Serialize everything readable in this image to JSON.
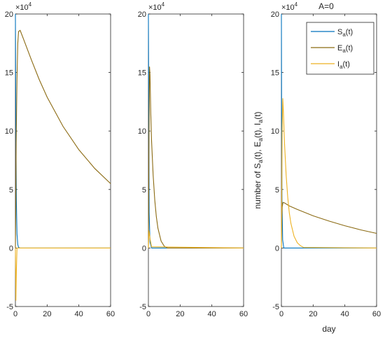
{
  "chart_data": [
    {
      "type": "line",
      "panel": "left",
      "x_unit_exponent_label": "×10",
      "y_exponent": "4",
      "xlim": [
        0,
        60
      ],
      "ylim": [
        -5,
        20
      ],
      "x_ticks": [
        "0",
        "20",
        "40",
        "60"
      ],
      "y_ticks": [
        "-5",
        "0",
        "5",
        "10",
        "15",
        "20"
      ],
      "xlabel": "",
      "ylabel": "",
      "title": "",
      "series": [
        {
          "color": "#0072BD",
          "x": [
            0,
            0.1,
            0.3,
            0.6,
            1,
            1.5,
            2,
            3,
            5,
            60
          ],
          "y": [
            20,
            17,
            10,
            4,
            1.2,
            0.3,
            0.05,
            0,
            0,
            0
          ]
        },
        {
          "color": "#8B6A12",
          "x": [
            0,
            0.2,
            0.5,
            1,
            1.5,
            2,
            3,
            5,
            10,
            15,
            20,
            30,
            40,
            50,
            60
          ],
          "y": [
            0,
            3,
            9,
            14.5,
            17.5,
            18.5,
            18.6,
            17.9,
            16.1,
            14.4,
            12.9,
            10.4,
            8.4,
            6.8,
            5.5
          ]
        },
        {
          "color": "#EDB120",
          "x": [
            0,
            0.3,
            0.6,
            1,
            60
          ],
          "y": [
            0,
            -4.5,
            -2,
            0,
            0
          ]
        }
      ]
    },
    {
      "type": "line",
      "panel": "middle",
      "x_unit_exponent_label": "×10",
      "y_exponent": "4",
      "xlim": [
        0,
        60
      ],
      "ylim": [
        -5,
        20
      ],
      "x_ticks": [
        "0",
        "20",
        "40",
        "60"
      ],
      "y_ticks": [
        "-5",
        "0",
        "5",
        "10",
        "15",
        "20"
      ],
      "xlabel": "",
      "ylabel": "",
      "title": "",
      "series": [
        {
          "color": "#0072BD",
          "x": [
            0,
            0.2,
            0.5,
            1,
            2,
            60
          ],
          "y": [
            20,
            12,
            3,
            0.5,
            0,
            0
          ]
        },
        {
          "color": "#8B6A12",
          "x": [
            0,
            0.3,
            0.7,
            1,
            1.5,
            2,
            3,
            4,
            5,
            6,
            8,
            10,
            12,
            60
          ],
          "y": [
            0,
            8,
            15.5,
            14.8,
            11.5,
            9.2,
            6.2,
            4.1,
            2.7,
            1.7,
            0.6,
            0.15,
            0,
            0
          ]
        },
        {
          "color": "#EDB120",
          "x": [
            0,
            0.4,
            1,
            2,
            60
          ],
          "y": [
            0,
            1.5,
            0.8,
            0.1,
            0
          ]
        }
      ]
    },
    {
      "type": "line",
      "panel": "right",
      "x_unit_exponent_label": "×10",
      "y_exponent": "4",
      "xlim": [
        0,
        60
      ],
      "ylim": [
        -5,
        20
      ],
      "x_ticks": [
        "0",
        "20",
        "40",
        "60"
      ],
      "y_ticks": [
        "-5",
        "0",
        "5",
        "10",
        "15",
        "20"
      ],
      "title": "A=0",
      "xlabel": "day",
      "ylabel": {
        "main": "number of S",
        "sub1": "a",
        "mid1": "(t), E",
        "sub2": "a",
        "mid2": "(t), I",
        "sub3": "a",
        "end": "(t)"
      },
      "legend_position": "top-right",
      "series": [
        {
          "name": "S",
          "sub": "a",
          "tail": "(t)",
          "color": "#0072BD",
          "x": [
            0,
            0.15,
            0.4,
            0.8,
            1.5,
            60
          ],
          "y": [
            20,
            12,
            4,
            0.7,
            0,
            0
          ]
        },
        {
          "name": "E",
          "sub": "a",
          "tail": "(t)",
          "color": "#8B6A12",
          "x": [
            0,
            0.2,
            0.5,
            1,
            2,
            5,
            10,
            20,
            30,
            40,
            50,
            60
          ],
          "y": [
            0,
            2.5,
            3.5,
            3.9,
            3.85,
            3.6,
            3.3,
            2.75,
            2.3,
            1.9,
            1.55,
            1.25
          ]
        },
        {
          "name": "I",
          "sub": "a",
          "tail": "(t)",
          "color": "#EDB120",
          "x": [
            0,
            0.2,
            0.5,
            0.9,
            1.3,
            2,
            3,
            4,
            5,
            6,
            8,
            10,
            12,
            14,
            60
          ],
          "y": [
            0,
            4,
            10,
            12.8,
            11.6,
            8.9,
            6.2,
            4.3,
            3.0,
            2.1,
            1.0,
            0.45,
            0.2,
            0.05,
            0
          ]
        }
      ]
    }
  ]
}
